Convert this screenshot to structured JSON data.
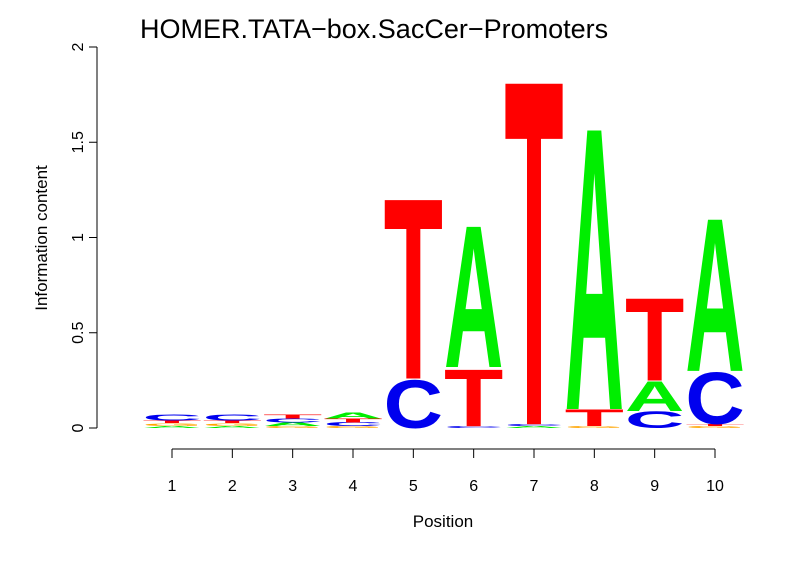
{
  "chart_data": {
    "type": "logo",
    "title": "HOMER.TATA−box.SacCer−Promoters",
    "xlabel": "Position",
    "ylabel": "Information content",
    "categories": [
      "1",
      "2",
      "3",
      "4",
      "5",
      "6",
      "7",
      "8",
      "9",
      "10"
    ],
    "series": [
      {
        "name": "A",
        "color": "#00ee00",
        "values": [
          0.01,
          0.01,
          0.02,
          0.03,
          0.0,
          0.77,
          0.01,
          1.53,
          0.16,
          0.83
        ]
      },
      {
        "name": "C",
        "color": "#0000ee",
        "values": [
          0.03,
          0.03,
          0.02,
          0.02,
          0.26,
          0.01,
          0.01,
          0.0,
          0.09,
          0.28
        ]
      },
      {
        "name": "G",
        "color": "#ffa500",
        "values": [
          0.015,
          0.015,
          0.01,
          0.01,
          0.0,
          0.0,
          0.0,
          0.01,
          0.0,
          0.01
        ]
      },
      {
        "name": "T",
        "color": "#ff0000",
        "values": [
          0.015,
          0.015,
          0.02,
          0.02,
          0.98,
          0.31,
          1.87,
          0.09,
          0.45,
          0.01
        ]
      }
    ],
    "ylim": [
      0,
      2
    ],
    "yticks": [
      0,
      0.5,
      1,
      1.5,
      2
    ]
  }
}
